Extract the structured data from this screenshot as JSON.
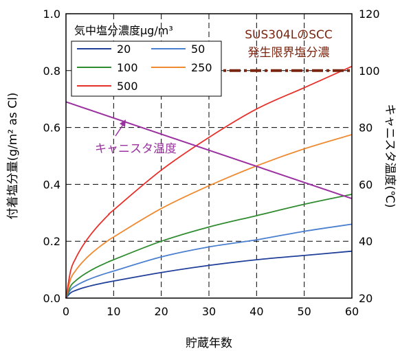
{
  "chart_data": {
    "type": "line",
    "xlabel": "貯蔵年数",
    "ylabel_left": "付着塩分量(g/m² as Cl)",
    "ylabel_right": "キャニスタ温度(℃)",
    "xlim": [
      0,
      60
    ],
    "ylim_left": [
      0,
      1.0
    ],
    "ylim_right": [
      20,
      120
    ],
    "x_ticks": [
      "0",
      "10",
      "20",
      "30",
      "40",
      "50",
      "60"
    ],
    "y_left_ticks": [
      "0.0",
      "0.2",
      "0.4",
      "0.6",
      "0.8",
      "1.0"
    ],
    "y_right_ticks": [
      "20",
      "40",
      "60",
      "80",
      "100",
      "120"
    ],
    "grid": true,
    "legend": {
      "title": "気中塩分濃度μg/m³",
      "placement": "top-left",
      "entries": [
        "20",
        "50",
        "100",
        "250",
        "500"
      ]
    },
    "colors": {
      "20": "#1f3e99",
      "50": "#4a7fd0",
      "100": "#2e8b2e",
      "250": "#f08a30",
      "500": "#e8302a",
      "temperature": "#9b30a0",
      "threshold": "#7a2510"
    },
    "series": [
      {
        "name": "20",
        "axis": "left",
        "x": [
          0,
          10,
          20,
          30,
          40,
          50,
          60
        ],
        "y": [
          0,
          0.06,
          0.09,
          0.115,
          0.135,
          0.15,
          0.165
        ]
      },
      {
        "name": "50",
        "axis": "left",
        "x": [
          0,
          10,
          20,
          30,
          40,
          50,
          60
        ],
        "y": [
          0,
          0.095,
          0.145,
          0.18,
          0.205,
          0.235,
          0.26
        ]
      },
      {
        "name": "100",
        "axis": "left",
        "x": [
          0,
          10,
          20,
          30,
          40,
          50,
          60
        ],
        "y": [
          0,
          0.135,
          0.2,
          0.25,
          0.29,
          0.33,
          0.365
        ]
      },
      {
        "name": "250",
        "axis": "left",
        "x": [
          0,
          10,
          20,
          30,
          40,
          50,
          60
        ],
        "y": [
          0,
          0.215,
          0.315,
          0.395,
          0.465,
          0.525,
          0.575
        ]
      },
      {
        "name": "500",
        "axis": "left",
        "x": [
          0,
          10,
          20,
          30,
          40,
          50,
          60
        ],
        "y": [
          0,
          0.31,
          0.45,
          0.565,
          0.665,
          0.74,
          0.815
        ]
      },
      {
        "name": "キャニスタ温度",
        "axis": "right",
        "x": [
          0,
          60
        ],
        "y": [
          89,
          55
        ]
      }
    ],
    "threshold": {
      "axis": "right",
      "value": 100,
      "x_start": 30,
      "x_end": 60
    },
    "annotations": {
      "threshold_label_line1": "SUS304LのSCC",
      "threshold_label_line2": "発生限界塩分濃",
      "temperature_label": "キャニスタ温度"
    }
  }
}
